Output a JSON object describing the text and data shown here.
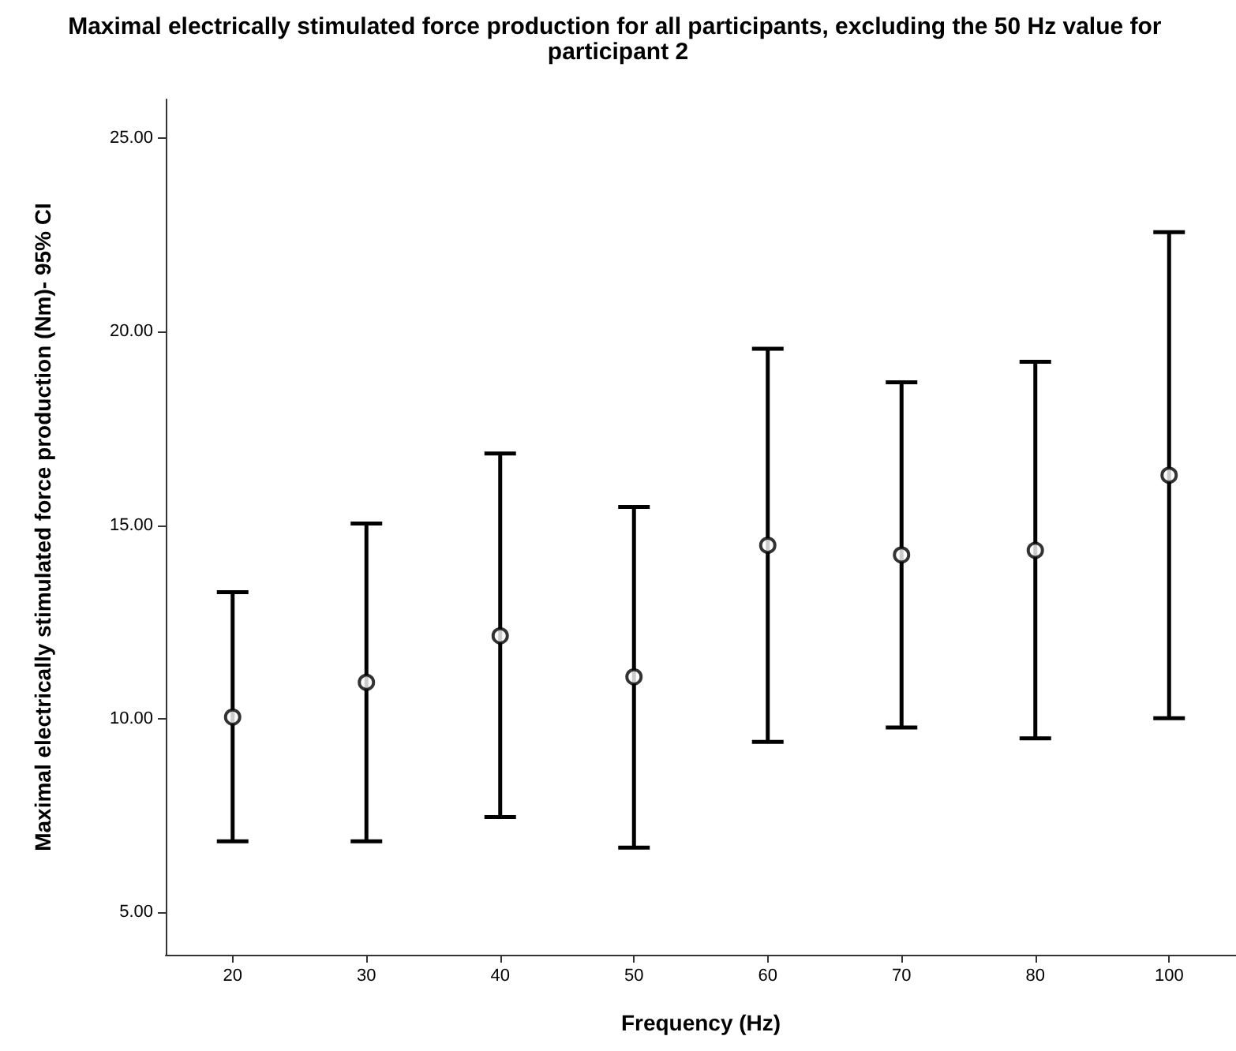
{
  "chart_data": {
    "type": "scatter",
    "title": "Maximal electrically stimulated force production for all participants, excluding the 50 Hz value for participant 2",
    "xlabel": "Frequency (Hz)",
    "ylabel": "Maximal electrically stimulated force production (Nm)- 95% CI",
    "categories": [
      "20",
      "30",
      "40",
      "50",
      "60",
      "70",
      "80",
      "100"
    ],
    "values": [
      10.04,
      10.94,
      12.14,
      11.08,
      14.48,
      14.23,
      14.35,
      16.29
    ],
    "errors": [
      [
        6.83,
        13.27
      ],
      [
        6.83,
        15.04
      ],
      [
        7.46,
        16.85
      ],
      [
        6.67,
        15.47
      ],
      [
        9.4,
        19.56
      ],
      [
        9.77,
        18.69
      ],
      [
        9.49,
        19.22
      ],
      [
        10.01,
        22.57
      ]
    ],
    "color": "#000000",
    "marker": "circle",
    "ylim": [
      3.9,
      26
    ],
    "yticks": [
      {
        "value": 5,
        "label": "5.00"
      },
      {
        "value": 10,
        "label": "10.00"
      },
      {
        "value": 15,
        "label": "15.00"
      },
      {
        "value": 20,
        "label": "20.00"
      },
      {
        "value": 25,
        "label": "25.00"
      }
    ],
    "grid": false
  }
}
